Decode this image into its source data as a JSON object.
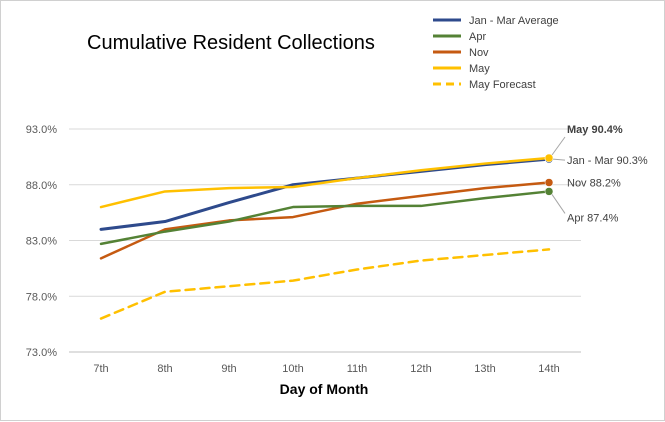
{
  "chart_data": {
    "type": "line",
    "title": "Cumulative Resident Collections",
    "xlabel": "Day of Month",
    "ylabel": "",
    "categories": [
      "7th",
      "8th",
      "9th",
      "10th",
      "11th",
      "12th",
      "13th",
      "14th"
    ],
    "ylim": [
      73.0,
      93.0
    ],
    "yticks": [
      "73.0%",
      "78.0%",
      "83.0%",
      "88.0%",
      "93.0%"
    ],
    "ytick_values": [
      73.0,
      78.0,
      83.0,
      88.0,
      93.0
    ],
    "grid": true,
    "legend_position": "top-right",
    "series": [
      {
        "name": "Jan - Mar Average",
        "color": "#2E4A8C",
        "dash": false,
        "values": [
          84.0,
          84.7,
          86.4,
          88.0,
          88.6,
          89.2,
          89.8,
          90.3
        ],
        "end_label": "Jan - Mar 90.3%",
        "end_bold": false
      },
      {
        "name": "Apr",
        "color": "#548235",
        "dash": false,
        "values": [
          82.7,
          83.8,
          84.7,
          86.0,
          86.1,
          86.1,
          86.8,
          87.4
        ],
        "end_label": "Apr 87.4%",
        "end_bold": false
      },
      {
        "name": "Nov",
        "color": "#C55A11",
        "dash": false,
        "values": [
          81.4,
          84.0,
          84.8,
          85.1,
          86.3,
          87.0,
          87.7,
          88.2
        ],
        "end_label": "Nov 88.2%",
        "end_bold": false
      },
      {
        "name": "May",
        "color": "#FFC000",
        "dash": false,
        "values": [
          86.0,
          87.4,
          87.7,
          87.8,
          88.6,
          89.3,
          89.9,
          90.4
        ],
        "end_label": "May 90.4%",
        "end_bold": true
      },
      {
        "name": "May Forecast",
        "color": "#FFC000",
        "dash": true,
        "values": [
          76.0,
          78.4,
          78.9,
          79.4,
          80.4,
          81.2,
          81.7,
          82.2
        ],
        "end_label": "",
        "end_bold": false
      }
    ]
  }
}
